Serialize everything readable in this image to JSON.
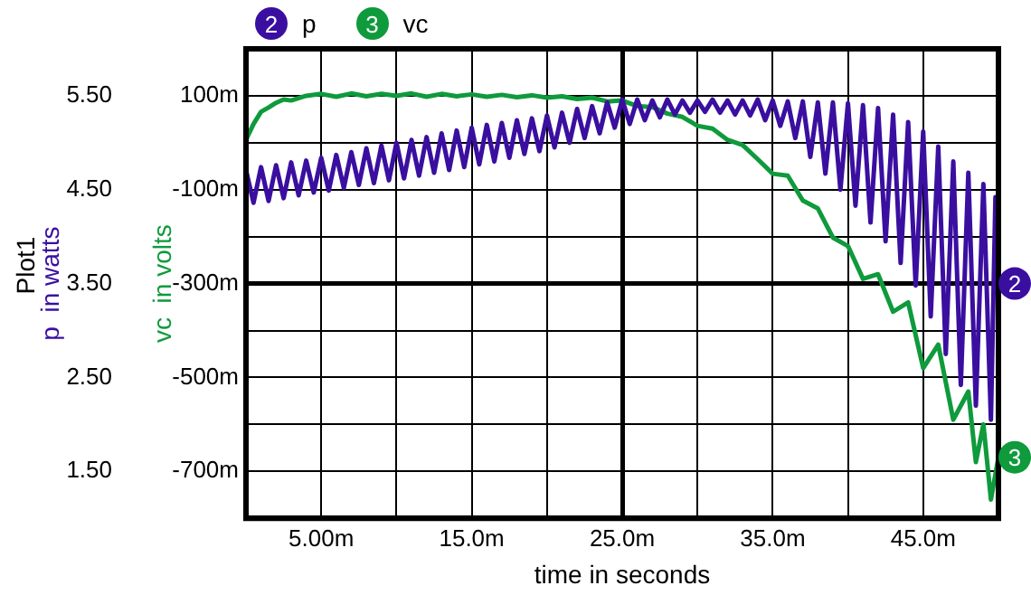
{
  "chart_data": {
    "type": "line",
    "xlabel": "time in seconds",
    "ylabel": "vc  in volts",
    "y2label": "p  in watts",
    "annotations": [
      "Plot1",
      "2",
      "3"
    ],
    "legend": "top",
    "grid": true,
    "xlim": [
      0,
      50
    ],
    "xticks": [
      {
        "value": 5,
        "label": "5.00m"
      },
      {
        "value": 10,
        "label": null
      },
      {
        "value": 15,
        "label": "15.0m"
      },
      {
        "value": 20,
        "label": null
      },
      {
        "value": 25,
        "label": "25.0m"
      },
      {
        "value": 30,
        "label": null
      },
      {
        "value": 35,
        "label": "35.0m"
      },
      {
        "value": 40,
        "label": null
      },
      {
        "value": 45,
        "label": "45.0m"
      }
    ],
    "y2lim": [
      1,
      6
    ],
    "y2ticks": [
      {
        "value": 1.5,
        "label": "1.50"
      },
      {
        "value": 2,
        "label": null
      },
      {
        "value": 2.5,
        "label": "2.50"
      },
      {
        "value": 3,
        "label": null
      },
      {
        "value": 3.5,
        "label": "3.50"
      },
      {
        "value": 4,
        "label": null
      },
      {
        "value": 4.5,
        "label": "4.50"
      },
      {
        "value": 5,
        "label": null
      },
      {
        "value": 5.5,
        "label": "5.50"
      }
    ],
    "ylim": [
      -800,
      200
    ],
    "yticks": [
      {
        "value": -700,
        "label": "-700m"
      },
      {
        "value": -500,
        "label": "-500m"
      },
      {
        "value": -300,
        "label": "-300m"
      },
      {
        "value": -100,
        "label": "-100m"
      },
      {
        "value": 100,
        "label": "100m"
      }
    ],
    "series": [
      {
        "name": "p",
        "color": "#3a0fa0",
        "axis": "y2",
        "x": [
          0,
          0.5,
          1,
          1.5,
          2,
          2.5,
          3,
          3.5,
          4,
          4.5,
          5,
          5.5,
          6,
          6.5,
          7,
          7.5,
          8,
          8.5,
          9,
          9.5,
          10,
          10.5,
          11,
          11.5,
          12,
          12.5,
          13,
          13.5,
          14,
          14.5,
          15,
          15.5,
          16,
          16.5,
          17,
          17.5,
          18,
          18.5,
          19,
          19.5,
          20,
          20.5,
          21,
          21.5,
          22,
          22.5,
          23,
          23.5,
          24,
          24.5,
          25,
          25.5,
          26,
          26.5,
          27,
          27.5,
          28,
          28.5,
          29,
          29.5,
          30,
          30.5,
          31,
          31.5,
          32,
          32.5,
          33,
          33.5,
          34,
          34.5,
          35,
          35.5,
          36,
          36.5,
          37,
          37.5,
          38,
          38.5,
          39,
          39.5,
          40,
          40.5,
          41,
          41.5,
          42,
          42.5,
          43,
          43.5,
          44,
          44.5,
          45,
          45.5,
          46,
          46.5,
          47,
          47.5,
          48,
          48.5,
          49,
          49.5,
          49.8,
          50
        ],
        "values": [
          4.71,
          4.36,
          4.74,
          4.38,
          4.76,
          4.41,
          4.79,
          4.44,
          4.81,
          4.47,
          4.84,
          4.49,
          4.87,
          4.52,
          4.9,
          4.55,
          4.94,
          4.57,
          4.97,
          4.6,
          5.0,
          4.62,
          5.03,
          4.65,
          5.06,
          4.68,
          5.1,
          4.71,
          5.13,
          4.74,
          5.16,
          4.77,
          5.19,
          4.8,
          5.21,
          4.84,
          5.24,
          4.88,
          5.26,
          4.91,
          5.29,
          4.95,
          5.32,
          5.0,
          5.36,
          5.05,
          5.39,
          5.1,
          5.43,
          5.16,
          5.46,
          5.2,
          5.46,
          5.24,
          5.45,
          5.27,
          5.46,
          5.3,
          5.45,
          5.32,
          5.45,
          5.33,
          5.46,
          5.32,
          5.45,
          5.3,
          5.45,
          5.29,
          5.46,
          5.24,
          5.45,
          5.18,
          5.44,
          5.05,
          5.44,
          4.85,
          5.43,
          4.67,
          5.43,
          4.5,
          5.42,
          4.33,
          5.4,
          4.15,
          5.37,
          3.95,
          5.3,
          3.72,
          5.22,
          3.48,
          5.12,
          3.15,
          4.96,
          2.75,
          4.8,
          2.42,
          4.68,
          2.2,
          4.56,
          2.05,
          4.42,
          3.5
        ]
      },
      {
        "name": "vc",
        "color": "#0f9a3c",
        "x": [
          0,
          0.5,
          1,
          1.5,
          2,
          2.5,
          3,
          4,
          5,
          6,
          7,
          8,
          9,
          10,
          11,
          12,
          13,
          14,
          15,
          16,
          17,
          18,
          19,
          20,
          21,
          22,
          23,
          24,
          25,
          26,
          27,
          28,
          29,
          30,
          31,
          32,
          33,
          34,
          35,
          36,
          37,
          38,
          39,
          40,
          41,
          42,
          43,
          44,
          45,
          46,
          47,
          48,
          48.5,
          49,
          49.5,
          50
        ],
        "values": [
          6,
          40,
          66,
          75,
          85,
          92,
          90,
          100,
          104,
          98,
          105,
          99,
          104,
          100,
          105,
          98,
          104,
          99,
          103,
          98,
          102,
          97,
          101,
          96,
          99,
          93,
          96,
          88,
          90,
          78,
          76,
          62,
          55,
          36,
          30,
          6,
          -5,
          -35,
          -66,
          -70,
          -123,
          -140,
          -202,
          -220,
          -290,
          -280,
          -360,
          -340,
          -480,
          -430,
          -590,
          -530,
          -680,
          -600,
          -760,
          -670
        ]
      }
    ]
  }
}
